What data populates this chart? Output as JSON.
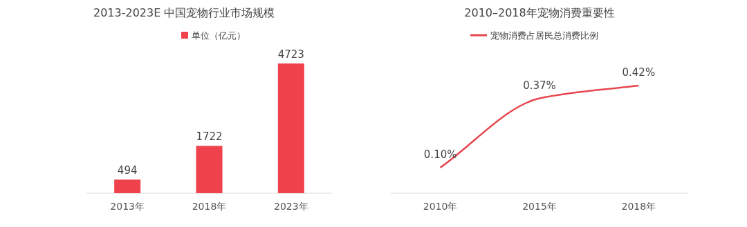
{
  "chart_data": [
    {
      "type": "bar",
      "title": "2013-2023E 中国宠物行业市场规模",
      "categories": [
        "2013年",
        "2018年",
        "2023年"
      ],
      "series": [
        {
          "name": "单位（亿元）",
          "color": "#f0424c",
          "values": [
            494,
            1722,
            4723
          ]
        }
      ],
      "data_labels": true,
      "legend": "top"
    },
    {
      "type": "line",
      "title": "2010–2018年宠物消费重要性",
      "categories": [
        "2010年",
        "2015年",
        "2018年"
      ],
      "series": [
        {
          "name": "宠物消费占居民总消费比例",
          "color": "#e8464f",
          "values": [
            0.1,
            0.37,
            0.42
          ],
          "value_labels": [
            "0.10%",
            "0.37%",
            "0.42%"
          ]
        }
      ],
      "legend": "top"
    }
  ]
}
